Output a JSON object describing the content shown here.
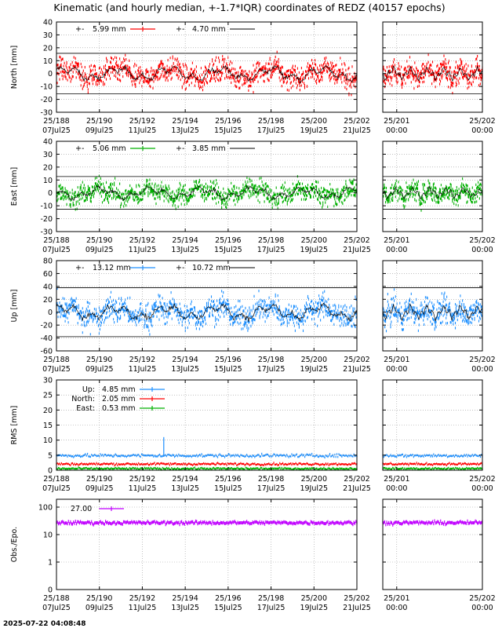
{
  "title": "Kinematic (and hourly median, +-1.7*IQR) coordinates of REDZ (40157 epochs)",
  "footer_timestamp": "2025-07-22 04:08:48",
  "colors": {
    "north": "#ff0000",
    "east": "#00b000",
    "up": "#1e90ff",
    "obs": "#c000ff",
    "median": "#000000",
    "grid": "#999999"
  },
  "x_ticks_main": [
    {
      "doy": "25/188",
      "date": "07Jul25"
    },
    {
      "doy": "25/190",
      "date": "09Jul25"
    },
    {
      "doy": "25/192",
      "date": "11Jul25"
    },
    {
      "doy": "25/194",
      "date": "13Jul25"
    },
    {
      "doy": "25/196",
      "date": "15Jul25"
    },
    {
      "doy": "25/198",
      "date": "17Jul25"
    },
    {
      "doy": "25/200",
      "date": "19Jul25"
    },
    {
      "doy": "25/202",
      "date": "21Jul25"
    }
  ],
  "x_ticks_zoom": [
    {
      "doy": "25/201",
      "date": "00:00"
    },
    {
      "doy": "25/202",
      "date": "00:00"
    }
  ],
  "chart_data": [
    {
      "type": "scatter",
      "id": "north",
      "ylabel": "North [mm]",
      "ylim": [
        -30,
        40
      ],
      "yticks": [
        "-30",
        "-20",
        "-10",
        "0",
        "10",
        "20",
        "30",
        "40"
      ],
      "y_tick_values": [
        -30,
        -20,
        -10,
        0,
        10,
        20,
        30,
        40
      ],
      "x_range_doy": [
        188,
        202
      ],
      "zoom_range_doy": [
        200.7,
        202
      ],
      "bounds": [
        15.7,
        -15.7
      ],
      "legend": [
        {
          "label": "+-",
          "value": "5.99 mm",
          "series": "kinematic"
        },
        {
          "label": "+-",
          "value": "4.70 mm",
          "series": "hourly median"
        }
      ],
      "spread": 6
    },
    {
      "type": "scatter",
      "id": "east",
      "ylabel": "East [mm]",
      "ylim": [
        -30,
        40
      ],
      "yticks": [
        "-30",
        "-20",
        "-10",
        "0",
        "10",
        "20",
        "30",
        "40"
      ],
      "y_tick_values": [
        -30,
        -20,
        -10,
        0,
        10,
        20,
        30,
        40
      ],
      "x_range_doy": [
        188,
        202
      ],
      "zoom_range_doy": [
        200.7,
        202
      ],
      "bounds": [
        12.7,
        -12.7
      ],
      "legend": [
        {
          "label": "+-",
          "value": "5.06 mm",
          "series": "kinematic"
        },
        {
          "label": "+-",
          "value": "3.85 mm",
          "series": "hourly median"
        }
      ],
      "spread": 5
    },
    {
      "type": "scatter",
      "id": "up",
      "ylabel": "Up [mm]",
      "ylim": [
        -60,
        80
      ],
      "yticks": [
        "-60",
        "-40",
        "-20",
        "0",
        "20",
        "40",
        "60",
        "80"
      ],
      "y_tick_values": [
        -60,
        -40,
        -20,
        0,
        20,
        40,
        60,
        80
      ],
      "x_range_doy": [
        188,
        202
      ],
      "zoom_range_doy": [
        200.7,
        202
      ],
      "bounds": [
        37.9,
        -37.9
      ],
      "legend": [
        {
          "label": "+-",
          "value": "13.12 mm",
          "series": "kinematic"
        },
        {
          "label": "+-",
          "value": "10.72 mm",
          "series": "hourly median"
        }
      ],
      "spread": 13
    },
    {
      "type": "scatter",
      "id": "rms",
      "ylabel": "RMS [mm]",
      "ylim": [
        0,
        30
      ],
      "yticks": [
        "0",
        "5",
        "10",
        "15",
        "20",
        "25",
        "30"
      ],
      "y_tick_values": [
        0,
        5,
        10,
        15,
        20,
        25,
        30
      ],
      "x_range_doy": [
        188,
        202
      ],
      "zoom_range_doy": [
        200.7,
        202
      ],
      "series": [
        {
          "name": "Up:",
          "value": "4.85 mm",
          "level": 4.85,
          "color": "#1e90ff"
        },
        {
          "name": "North:",
          "value": "2.05 mm",
          "level": 2.05,
          "color": "#ff0000"
        },
        {
          "name": "East:",
          "value": "0.53 mm",
          "level": 0.53,
          "color": "#00b000"
        }
      ]
    },
    {
      "type": "scatter",
      "id": "obs",
      "ylabel": "Obs./Epo.",
      "scale": "log",
      "yticks": [
        "0",
        "1",
        "10",
        "100"
      ],
      "y_tick_values": [
        0,
        1,
        10,
        100
      ],
      "x_range_doy": [
        188,
        202
      ],
      "zoom_range_doy": [
        200.7,
        202
      ],
      "legend": [
        {
          "value": "27.00"
        }
      ],
      "level": 27
    }
  ]
}
